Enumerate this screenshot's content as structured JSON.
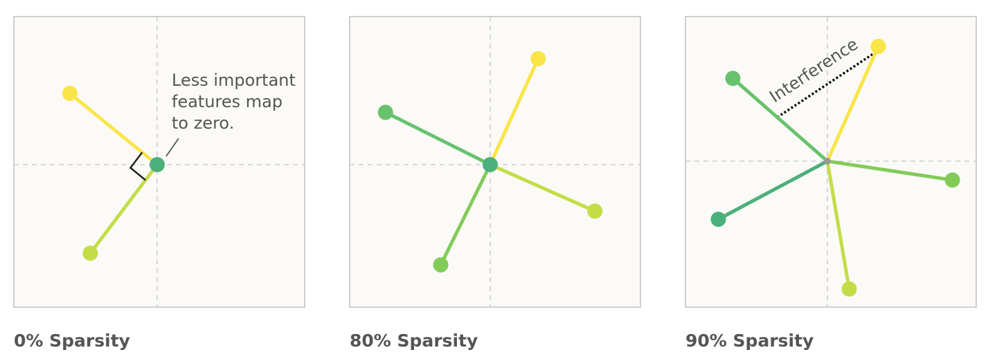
{
  "colors": {
    "yellow": "#f9e547",
    "yellow_green": "#c4dd47",
    "light_green": "#83cb59",
    "green": "#68c26d",
    "teal_green": "#4bb07a",
    "origin_gray": "#999999",
    "bracket": "#222222",
    "interference_line": "#111111"
  },
  "panels": [
    {
      "caption": "0% Sparsity",
      "features": [
        {
          "dx": -0.6,
          "dy": 0.49,
          "color": "yellow"
        },
        {
          "dx": -0.46,
          "dy": -0.61,
          "color": "yellow_green"
        }
      ],
      "origin_dot": {
        "radius": 11,
        "color": "teal_green"
      },
      "annotation": {
        "lines": [
          "Less important",
          "features map",
          "to zero."
        ]
      },
      "right_angle_marker": true
    },
    {
      "caption": "80% Sparsity",
      "features": [
        {
          "dx": 0.33,
          "dy": 0.73,
          "color": "yellow"
        },
        {
          "dx": -0.72,
          "dy": 0.36,
          "color": "green"
        },
        {
          "dx": 0.72,
          "dy": -0.32,
          "color": "yellow_green"
        },
        {
          "dx": -0.34,
          "dy": -0.69,
          "color": "light_green"
        }
      ],
      "origin_dot": {
        "radius": 11,
        "color": "teal_green"
      }
    },
    {
      "caption": "90% Sparsity",
      "features": [
        {
          "dx": 0.35,
          "dy": 0.79,
          "color": "yellow"
        },
        {
          "dx": -0.65,
          "dy": 0.57,
          "color": "green"
        },
        {
          "dx": 0.86,
          "dy": -0.13,
          "color": "light_green"
        },
        {
          "dx": -0.75,
          "dy": -0.4,
          "color": "teal_green"
        },
        {
          "dx": 0.15,
          "dy": -0.88,
          "color": "yellow_green"
        }
      ],
      "origin_dot": {
        "radius": 5,
        "color": "origin_gray"
      },
      "interference": {
        "label": "Interference",
        "between": [
          1,
          0
        ]
      }
    }
  ]
}
